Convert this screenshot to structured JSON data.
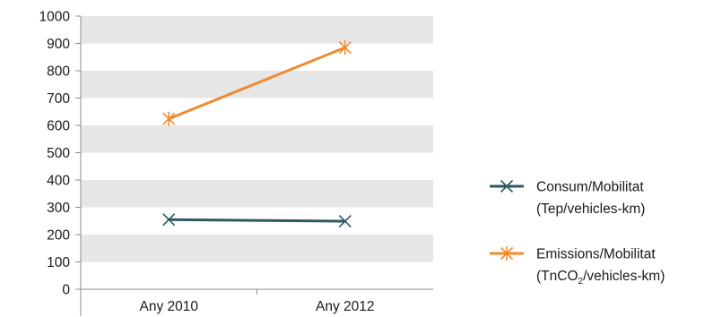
{
  "chart_data": {
    "type": "line",
    "categories": [
      "Any 2010",
      "Any 2012"
    ],
    "ylim": [
      0,
      1000
    ],
    "yticks": [
      "0",
      "100",
      "200",
      "300",
      "400",
      "500",
      "600",
      "700",
      "800",
      "900",
      "1000"
    ],
    "grid": "alternating horizontal bands",
    "legend_position": "right",
    "series": [
      {
        "name_line1": "Consum/Mobilitat",
        "name_line2": "(Tep/vehicles-km)",
        "values": [
          255,
          249
        ],
        "color": "#2d5961",
        "marker": "x"
      },
      {
        "name_line1": "Emissions/Mobilitat",
        "name_line2_pre": "(TnCO",
        "name_line2_sub": "2",
        "name_line2_post": "/vehicles-km)",
        "values": [
          624,
          885
        ],
        "color": "#f08a2e",
        "marker": "asterisk"
      }
    ]
  }
}
